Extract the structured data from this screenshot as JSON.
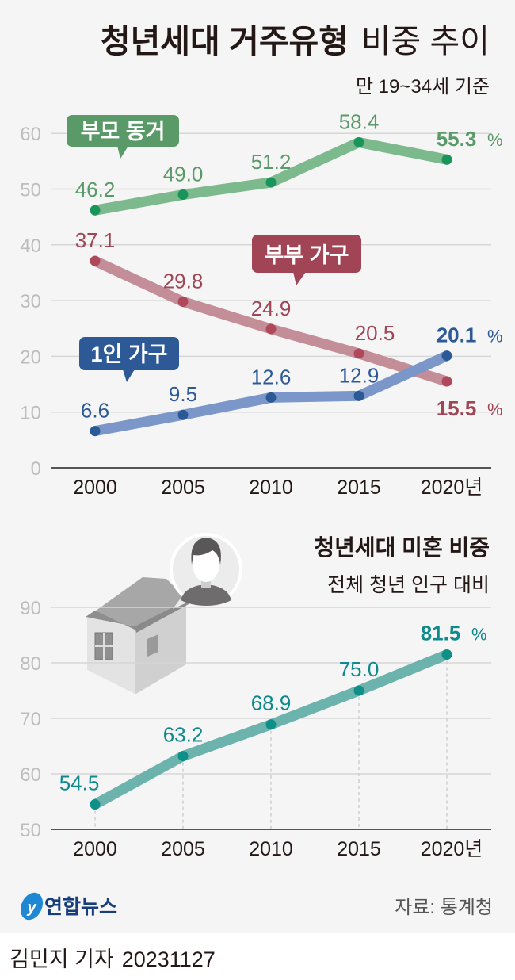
{
  "header": {
    "title_bold": "청년세대 거주유형",
    "title_light": "비중 추이",
    "subtitle": "만 19~34세 기준"
  },
  "chart_data": [
    {
      "type": "line",
      "title": "청년세대 거주유형 비중 추이",
      "subtitle": "만 19~34세 기준",
      "categories": [
        "2000",
        "2005",
        "2010",
        "2015",
        "2020년"
      ],
      "yticks": [
        "0",
        "10",
        "20",
        "30",
        "40",
        "50",
        "60"
      ],
      "ylim": [
        0,
        60
      ],
      "unit": "%",
      "grid": true,
      "series": [
        {
          "name": "부모 동거",
          "values": [
            46.2,
            49.0,
            51.2,
            58.4,
            55.3
          ],
          "labels": [
            "46.2",
            "49.0",
            "51.2",
            "58.4",
            "55.3"
          ],
          "line_color": "#7cb98c",
          "dot_color": "#19945a",
          "label_color": "#5a9a68"
        },
        {
          "name": "부부 가구",
          "values": [
            37.1,
            29.8,
            24.9,
            20.5,
            15.5
          ],
          "labels": [
            "37.1",
            "29.8",
            "24.9",
            "20.5",
            "15.5"
          ],
          "line_color": "#c48e98",
          "dot_color": "#b0485c",
          "label_color": "#a04456"
        },
        {
          "name": "1인 가구",
          "values": [
            6.6,
            9.5,
            12.6,
            12.9,
            20.1
          ],
          "labels": [
            "6.6",
            "9.5",
            "12.6",
            "12.9",
            "20.1"
          ],
          "line_color": "#7b97c9",
          "dot_color": "#2b5996",
          "label_color": "#2d5a96"
        }
      ]
    },
    {
      "type": "line",
      "title": "청년세대 미혼 비중",
      "subtitle": "전체 청년 인구 대비",
      "categories": [
        "2000",
        "2005",
        "2010",
        "2015",
        "2020년"
      ],
      "yticks": [
        "50",
        "60",
        "70",
        "80",
        "90"
      ],
      "ylim": [
        50,
        90
      ],
      "unit": "%",
      "grid": true,
      "series": [
        {
          "name": "미혼 비중",
          "values": [
            54.5,
            63.2,
            68.9,
            75.0,
            81.5
          ],
          "labels": [
            "54.5",
            "63.2",
            "68.9",
            "75.0",
            "81.5"
          ],
          "line_color": "#6cb3ae",
          "dot_color": "#0e8f88",
          "label_color": "#0e8a8c"
        }
      ]
    }
  ],
  "source": "자료: 통계청",
  "logo_text": "연합뉴스",
  "footer": {
    "author": "김민지 기자",
    "date": "20231127"
  }
}
